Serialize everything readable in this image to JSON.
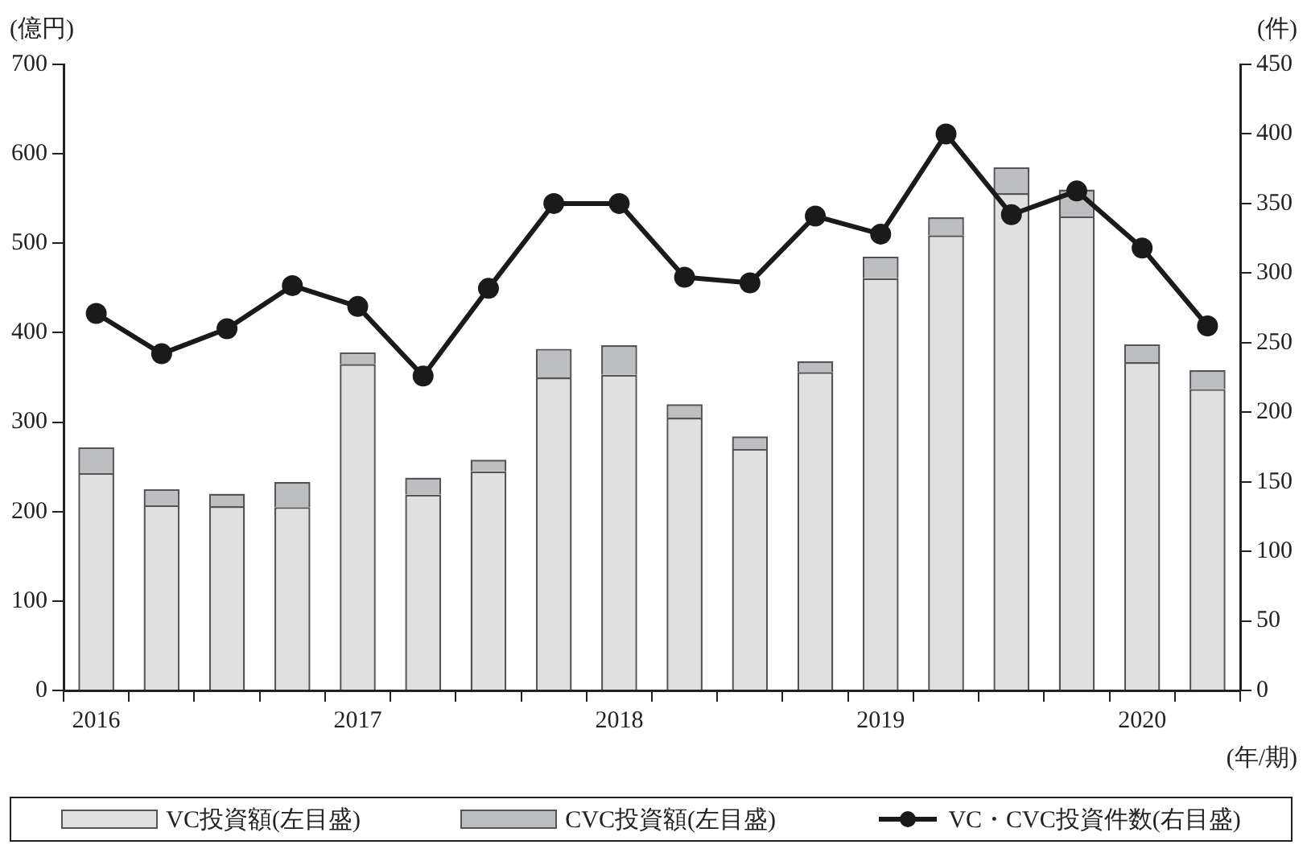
{
  "chart_data": {
    "type": "bar",
    "stacked": true,
    "xlabel": "(年/期)",
    "ylabel": "(億円)",
    "y2label": "(件)",
    "categories": [
      "2016",
      null,
      null,
      null,
      "2017",
      null,
      null,
      null,
      "2018",
      null,
      null,
      null,
      "2019",
      null,
      null,
      null,
      "2020",
      null
    ],
    "series": [
      {
        "name": "VC投資額(左目盛)",
        "color": "#e0e0e0",
        "values": [
          243,
          207,
          206,
          205,
          365,
          219,
          245,
          350,
          353,
          305,
          270,
          356,
          461,
          509,
          556,
          530,
          367,
          337
        ]
      },
      {
        "name": "CVC投資額(左目盛)",
        "color": "#bdbec2",
        "values": [
          29,
          18,
          14,
          28,
          13,
          19,
          13,
          32,
          33,
          15,
          14,
          12,
          24,
          20,
          29,
          30,
          20,
          21
        ]
      },
      {
        "name": "VC・CVC投資件数(右目盛)",
        "type": "line",
        "axis": "y2",
        "color": "#1a1a1a",
        "marker": "circle",
        "values": [
          271,
          242,
          260,
          291,
          276,
          226,
          289,
          350,
          350,
          297,
          293,
          341,
          328,
          400,
          342,
          359,
          318,
          262
        ]
      }
    ],
    "ylim": [
      0,
      700
    ],
    "yticks": [
      0,
      100,
      200,
      300,
      400,
      500,
      600,
      700
    ],
    "y2lim": [
      0,
      450
    ],
    "y2ticks": [
      0,
      50,
      100,
      150,
      200,
      250,
      300,
      350,
      400,
      450
    ],
    "grid": false,
    "legend": "bottom"
  }
}
